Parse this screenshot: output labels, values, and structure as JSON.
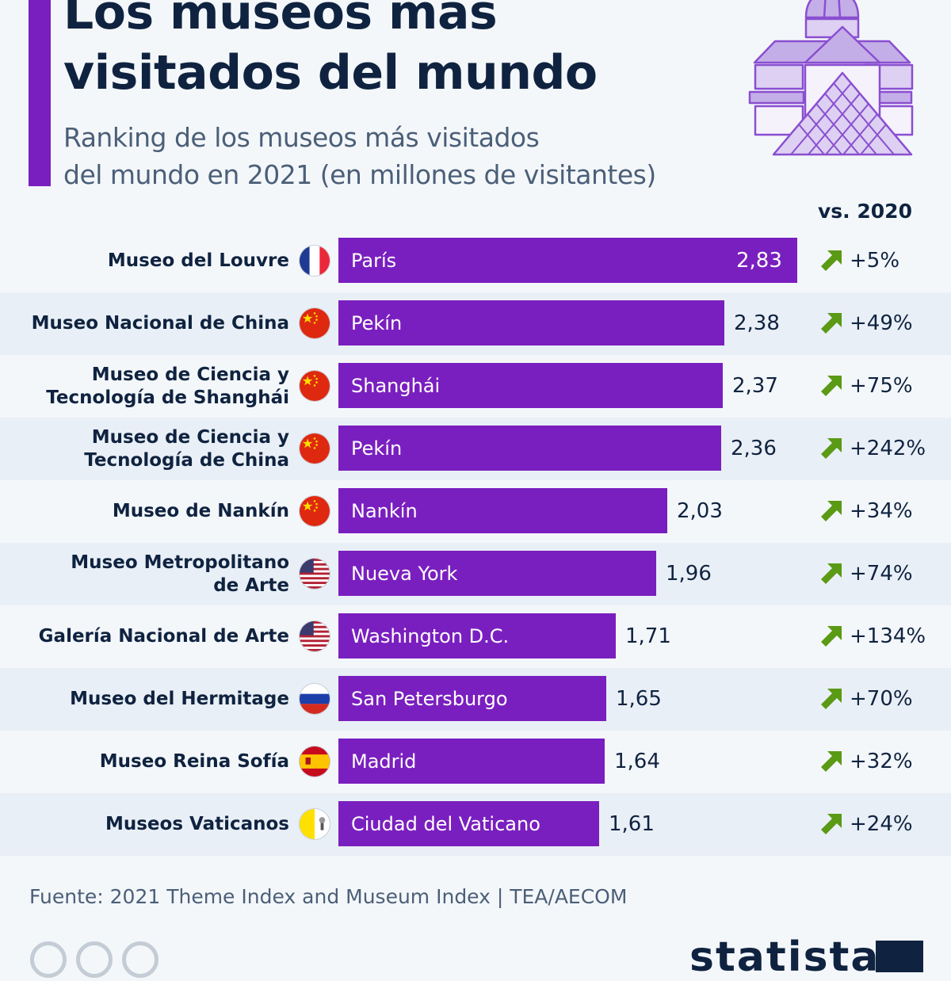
{
  "header": {
    "title_line1": "Los museos más",
    "title_line2": "visitados del mundo",
    "subtitle_line1": "Ranking de los museos más visitados",
    "subtitle_line2": "del mundo en 2021 (en millones de visitantes)"
  },
  "colors": {
    "accent": "#7a1fbf",
    "bar": "#7a1fbf",
    "arrow_up": "#5a9a14",
    "text_dark": "#0f2340",
    "text_muted": "#4b5f78",
    "row_alt": "#e9eff6"
  },
  "change_header": "vs. 2020",
  "chart_data": {
    "type": "bar",
    "orientation": "horizontal",
    "title": "Los museos más visitados del mundo",
    "subtitle": "Ranking de los museos más visitados del mundo en 2021 (en millones de visitantes)",
    "xlabel": "",
    "ylabel": "",
    "unit": "millones de visitantes",
    "xlim": [
      0,
      2.83
    ],
    "grid": false,
    "legend": "none",
    "categories": [
      "Museo del Louvre",
      "Museo Nacional de China",
      "Museo de Ciencia y Tecnología de Shanghái",
      "Museo de Ciencia y Tecnología de China",
      "Museo de Nankín",
      "Museo Metropolitano de Arte",
      "Galería Nacional de Arte",
      "Museo del Hermitage",
      "Museo Reina Sofía",
      "Museos Vaticanos"
    ],
    "values": [
      2.83,
      2.38,
      2.37,
      2.36,
      2.03,
      1.96,
      1.71,
      1.65,
      1.64,
      1.61
    ],
    "rows": [
      {
        "name_lines": [
          "Museo del Louvre"
        ],
        "flag": "france-flag",
        "city": "París",
        "value": 2.83,
        "value_label": "2,83",
        "change": "+5%",
        "direction": "up"
      },
      {
        "name_lines": [
          "Museo Nacional de China"
        ],
        "flag": "china-flag",
        "city": "Pekín",
        "value": 2.38,
        "value_label": "2,38",
        "change": "+49%",
        "direction": "up"
      },
      {
        "name_lines": [
          "Museo de Ciencia y",
          "Tecnología de Shanghái"
        ],
        "flag": "china-flag",
        "city": "Shanghái",
        "value": 2.37,
        "value_label": "2,37",
        "change": "+75%",
        "direction": "up"
      },
      {
        "name_lines": [
          "Museo de Ciencia y",
          "Tecnología de China"
        ],
        "flag": "china-flag",
        "city": "Pekín",
        "value": 2.36,
        "value_label": "2,36",
        "change": "+242%",
        "direction": "up"
      },
      {
        "name_lines": [
          "Museo de Nankín"
        ],
        "flag": "china-flag",
        "city": "Nankín",
        "value": 2.03,
        "value_label": "2,03",
        "change": "+34%",
        "direction": "up"
      },
      {
        "name_lines": [
          "Museo Metropolitano",
          "de Arte"
        ],
        "flag": "usa-flag",
        "city": "Nueva York",
        "value": 1.96,
        "value_label": "1,96",
        "change": "+74%",
        "direction": "up"
      },
      {
        "name_lines": [
          "Galería Nacional de Arte"
        ],
        "flag": "usa-flag",
        "city": "Washington D.C.",
        "value": 1.71,
        "value_label": "1,71",
        "change": "+134%",
        "direction": "up"
      },
      {
        "name_lines": [
          "Museo del Hermitage"
        ],
        "flag": "russia-flag",
        "city": "San Petersburgo",
        "value": 1.65,
        "value_label": "1,65",
        "change": "+70%",
        "direction": "up"
      },
      {
        "name_lines": [
          "Museo Reina Sofía"
        ],
        "flag": "spain-flag",
        "city": "Madrid",
        "value": 1.64,
        "value_label": "1,64",
        "change": "+32%",
        "direction": "up"
      },
      {
        "name_lines": [
          "Museos Vaticanos"
        ],
        "flag": "vatican-flag",
        "city": "Ciudad del Vaticano",
        "value": 1.61,
        "value_label": "1,61",
        "change": "+24%",
        "direction": "up"
      }
    ]
  },
  "footer": {
    "source": "Fuente: 2021 Theme Index and Museum Index | TEA/AECOM",
    "cc_icons": [
      "creative-commons-icon",
      "attribution-icon",
      "no-derivatives-icon"
    ],
    "logo": "statista"
  }
}
